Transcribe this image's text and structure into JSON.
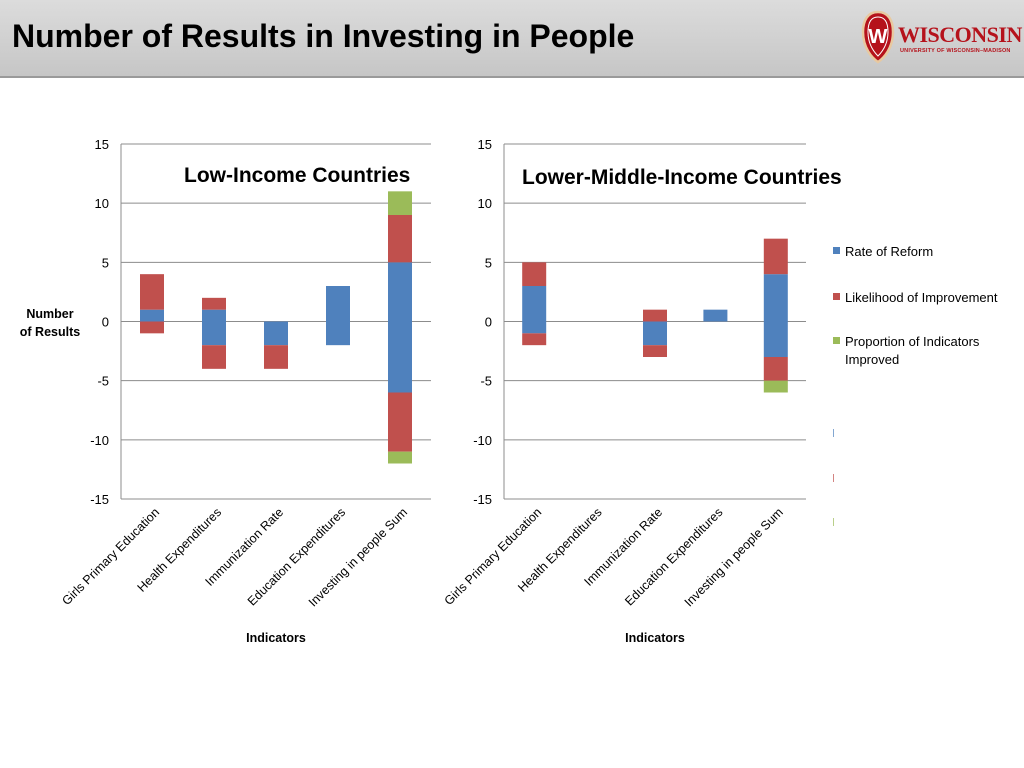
{
  "slide": {
    "title": "Number of Results in Investing in People"
  },
  "logo": {
    "wordmark": "WISCONSIN",
    "subtitle": "UNIVERSITY OF WISCONSIN–MADISON",
    "crest_letter": "W",
    "color": "#b5121b"
  },
  "colors": {
    "rate": "#4f81bd",
    "likelihood": "#c0504d",
    "proportion": "#9bbb59"
  },
  "legend": {
    "placement": "right",
    "items": [
      {
        "label": "Rate of Reform",
        "color": "#4f81bd"
      },
      {
        "label": "Likelihood of Improvement",
        "color": "#c0504d"
      },
      {
        "label": "Proportion of Indicators Improved",
        "color": "#9bbb59",
        "lines": [
          "Proportion of Indicators",
          "Improved"
        ]
      }
    ]
  },
  "chart_data": [
    {
      "type": "bar",
      "stacked": true,
      "title": "Low-Income Countries",
      "xlabel": "Indicators",
      "ylabel": "Number of Results",
      "ylabel_lines": [
        "Number",
        "of Results"
      ],
      "ylim": [
        -15,
        15
      ],
      "yticks": [
        15,
        10,
        5,
        0,
        -5,
        -10,
        -15
      ],
      "grid": true,
      "categories": [
        "Girls Primary Education",
        "Health Expenditures",
        "Immunization Rate",
        "Education Expenditures",
        "Investing in people Sum"
      ],
      "series": [
        {
          "name": "Rate of Reform",
          "key": "rate",
          "values": [
            1,
            1,
            0,
            3,
            5
          ],
          "negative": [
            0,
            -2,
            -2,
            -2,
            -6
          ]
        },
        {
          "name": "Likelihood of Improvement",
          "key": "likelihood",
          "values": [
            3,
            1,
            0,
            0,
            4
          ],
          "negative": [
            -1,
            -2,
            -2,
            0,
            -5
          ]
        },
        {
          "name": "Proportion of Indicators Improved",
          "key": "proportion",
          "values": [
            0,
            0,
            0,
            0,
            2
          ],
          "negative": [
            0,
            0,
            0,
            0,
            -1
          ]
        }
      ]
    },
    {
      "type": "bar",
      "stacked": true,
      "title": "Lower-Middle-Income Countries",
      "xlabel": "Indicators",
      "ylim": [
        -15,
        15
      ],
      "yticks": [
        15,
        10,
        5,
        0,
        -5,
        -10,
        -15
      ],
      "grid": true,
      "categories": [
        "Girls Primary Education",
        "Health Expenditures",
        "Immunization Rate",
        "Education Expenditures",
        "Investing in people Sum"
      ],
      "series": [
        {
          "name": "Rate of Reform",
          "key": "rate",
          "values": [
            3,
            0,
            0,
            1,
            4
          ],
          "negative": [
            -1,
            0,
            -2,
            0,
            -3
          ]
        },
        {
          "name": "Likelihood of Improvement",
          "key": "likelihood",
          "values": [
            2,
            0,
            1,
            0,
            3
          ],
          "negative": [
            -1,
            0,
            -1,
            0,
            -2
          ]
        },
        {
          "name": "Proportion of Indicators Improved",
          "key": "proportion",
          "values": [
            0,
            0,
            0,
            0,
            0
          ],
          "negative": [
            0,
            0,
            0,
            0,
            -1
          ]
        }
      ]
    }
  ]
}
